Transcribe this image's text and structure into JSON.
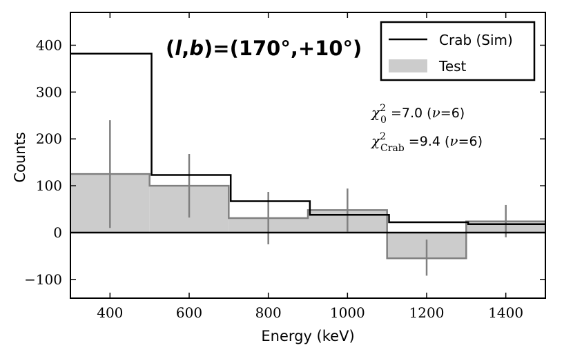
{
  "chart_data": {
    "type": "histogram",
    "title": "",
    "xlabel": "Energy (keV)",
    "ylabel": "Counts",
    "xlim": [
      300,
      1500
    ],
    "ylim": [
      -140,
      470
    ],
    "bin_edges": [
      300,
      500,
      700,
      900,
      1100,
      1300,
      1500
    ],
    "xticks": [
      400,
      600,
      800,
      1000,
      1200,
      1400
    ],
    "yticks": [
      -100,
      0,
      100,
      200,
      300,
      400
    ],
    "ytick_labels": [
      "−100",
      "0",
      "100",
      "200",
      "300",
      "400"
    ],
    "series": [
      {
        "name": "Crab (Sim)",
        "style": "step",
        "color": "#000000",
        "bins": [
          {
            "x0": 300,
            "x1": 505,
            "value": 382
          },
          {
            "x0": 505,
            "x1": 705,
            "value": 123
          },
          {
            "x0": 705,
            "x1": 905,
            "value": 67
          },
          {
            "x0": 905,
            "x1": 1105,
            "value": 38
          },
          {
            "x0": 1105,
            "x1": 1305,
            "value": 22
          },
          {
            "x0": 1305,
            "x1": 1500,
            "value": 18
          }
        ]
      },
      {
        "name": "Test",
        "style": "filled-step",
        "color": "#cccccc",
        "edge_color": "#808080",
        "bins": [
          {
            "x0": 300,
            "x1": 500,
            "value": 125
          },
          {
            "x0": 500,
            "x1": 700,
            "value": 100
          },
          {
            "x0": 700,
            "x1": 900,
            "value": 31
          },
          {
            "x0": 900,
            "x1": 1100,
            "value": 48
          },
          {
            "x0": 1100,
            "x1": 1300,
            "value": -55
          },
          {
            "x0": 1300,
            "x1": 1500,
            "value": 24
          }
        ],
        "error_bars": [
          {
            "x": 400,
            "low": 10,
            "high": 240
          },
          {
            "x": 600,
            "low": 32,
            "high": 168
          },
          {
            "x": 800,
            "low": -25,
            "high": 87
          },
          {
            "x": 1000,
            "low": 2,
            "high": 94
          },
          {
            "x": 1200,
            "low": -92,
            "high": -15
          },
          {
            "x": 1400,
            "low": -10,
            "high": 59
          }
        ]
      }
    ],
    "zero_line": 0,
    "legend": {
      "position": "top-right",
      "entries": [
        {
          "label": "Crab (Sim)",
          "kind": "line",
          "color": "#000000"
        },
        {
          "label": "Test",
          "kind": "patch",
          "color": "#cccccc"
        }
      ]
    },
    "annotations": {
      "coord": {
        "l": "l",
        "b": "b",
        "values": ")=(170°,+10°)"
      },
      "chi0": {
        "symbol": "χ",
        "sup": "2",
        "sub": "0",
        "value": " =7.0 (",
        "nu": "ν",
        "dof": "=6)"
      },
      "chicrab": {
        "symbol": "χ",
        "sup": "2",
        "sub": "Crab",
        "value": " =9.4 (",
        "nu": "ν",
        "dof": "=6)"
      }
    }
  }
}
